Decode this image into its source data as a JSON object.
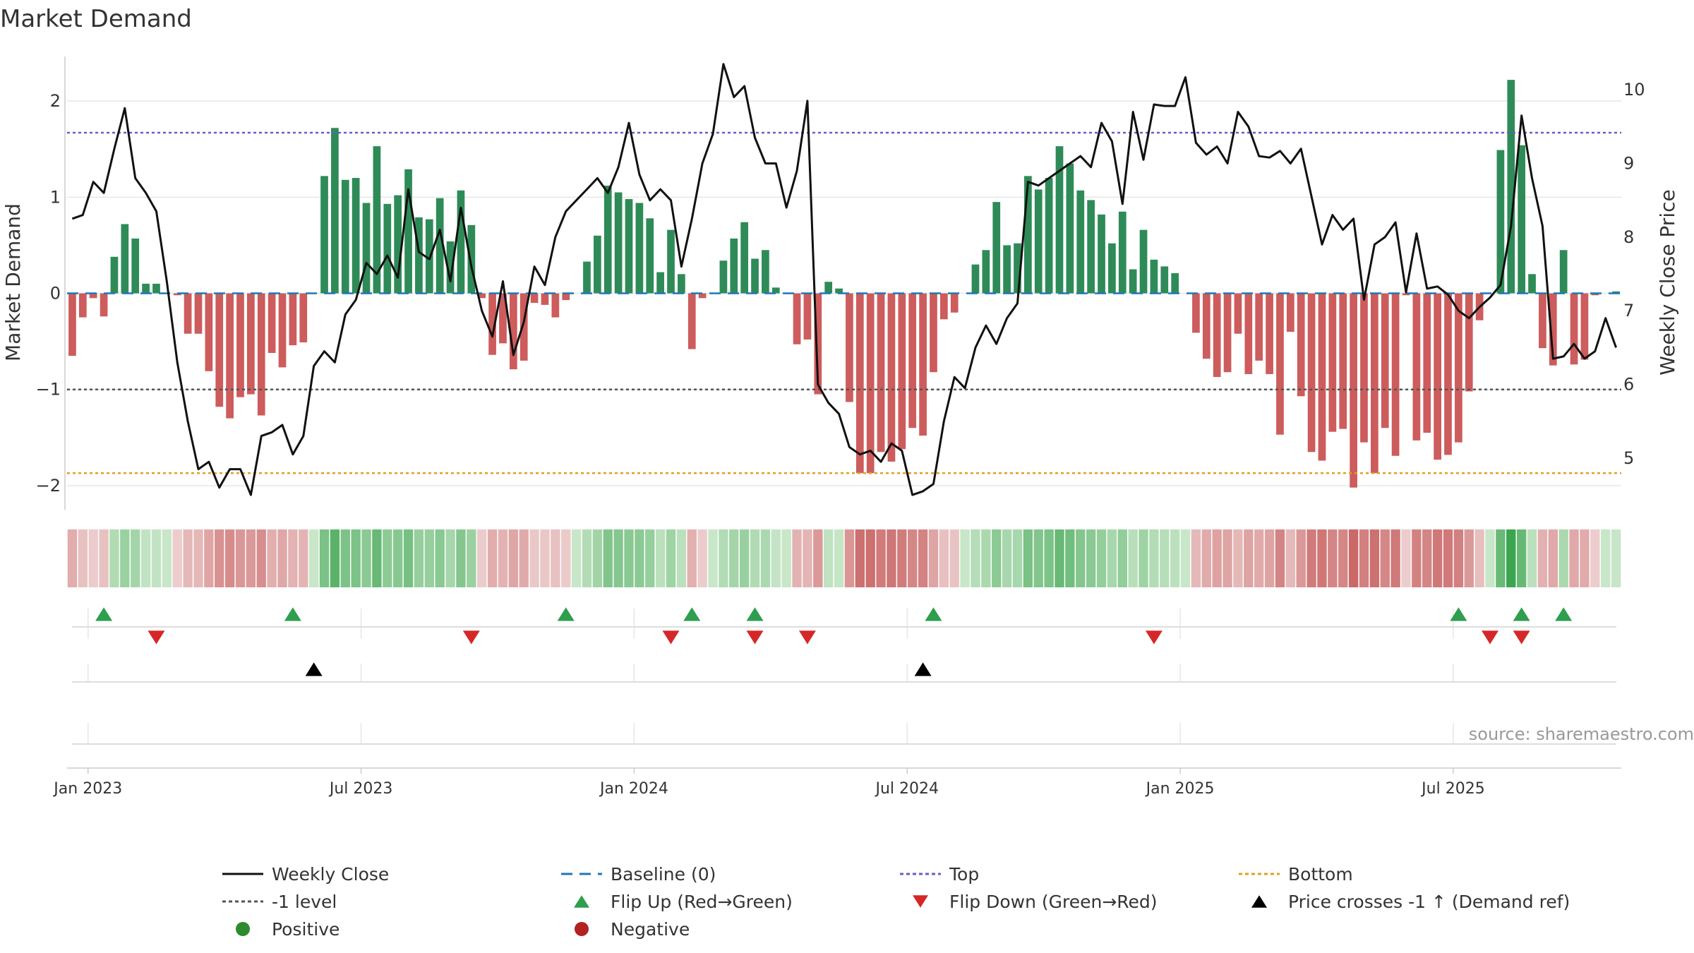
{
  "chart_data": {
    "type": "bar",
    "title": "Market Demand",
    "ylabel": "Market Demand",
    "y2label": "Weekly Close Price",
    "ylim": [
      -2.25,
      2.5
    ],
    "y2lim": [
      4.3,
      10.5
    ],
    "yticks": [
      {
        "v": 2,
        "t": "2"
      },
      {
        "v": 1,
        "t": "1"
      },
      {
        "v": 0,
        "t": "0"
      },
      {
        "v": -1,
        "t": "−1"
      },
      {
        "v": -2,
        "t": "−2"
      }
    ],
    "y2ticks": [
      5,
      6,
      7,
      8,
      9,
      10
    ],
    "xticks": [
      {
        "w": 1.5,
        "label": "Jan 2023"
      },
      {
        "w": 27.5,
        "label": "Jul 2023"
      },
      {
        "w": 53.5,
        "label": "Jan 2024"
      },
      {
        "w": 79.5,
        "label": "Jul 2024"
      },
      {
        "w": 105.5,
        "label": "Jan 2025"
      },
      {
        "w": 131.5,
        "label": "Jul 2025"
      }
    ],
    "levels": {
      "top": 1.67,
      "minus_one": -1,
      "bottom": -1.87,
      "baseline": 0
    },
    "source": "source: sharemaestro.com",
    "demand": [
      -0.65,
      -0.25,
      -0.05,
      -0.24,
      0.38,
      0.72,
      0.57,
      0.1,
      0.1,
      0,
      -0.02,
      -0.42,
      -0.42,
      -0.81,
      -1.18,
      -1.3,
      -1.08,
      -1.05,
      -1.27,
      -0.62,
      -0.77,
      -0.54,
      -0.51,
      0,
      1.22,
      1.72,
      1.18,
      1.2,
      0.94,
      1.53,
      0.93,
      1.02,
      1.29,
      0.79,
      0.77,
      0.99,
      0.54,
      1.07,
      0.71,
      -0.05,
      -0.64,
      -0.52,
      -0.79,
      -0.7,
      -0.1,
      -0.12,
      -0.25,
      -0.07,
      0,
      0.33,
      0.6,
      1.12,
      1.05,
      0.98,
      0.94,
      0.78,
      0.22,
      0.66,
      0.2,
      -0.58,
      -0.05,
      0,
      0.34,
      0.57,
      0.74,
      0.36,
      0.45,
      0.06,
      0,
      -0.53,
      -0.48,
      -1.05,
      0.12,
      0.05,
      -1.13,
      -1.87,
      -1.87,
      -1.65,
      -1.75,
      -1.62,
      -1.4,
      -1.48,
      -0.82,
      -0.27,
      -0.2,
      0,
      0.3,
      0.45,
      0.95,
      0.5,
      0.52,
      1.22,
      1.08,
      1.2,
      1.53,
      1.35,
      1.07,
      0.97,
      0.82,
      0.52,
      0.85,
      0.25,
      0.66,
      0.35,
      0.28,
      0.21,
      0,
      -0.41,
      -0.68,
      -0.87,
      -0.82,
      -0.42,
      -0.84,
      -0.7,
      -0.84,
      -1.47,
      -0.4,
      -1.07,
      -1.65,
      -1.74,
      -1.44,
      -1.41,
      -2.02,
      -1.55,
      -1.87,
      -1.4,
      -1.69,
      -0.02,
      -1.53,
      -1.45,
      -1.73,
      -1.68,
      -1.55,
      -1.02,
      -0.28,
      0,
      1.49,
      2.22,
      1.54,
      0.2,
      -0.57,
      -0.75,
      0.45,
      -0.74,
      -0.69,
      -0.02,
      0,
      0.02
    ],
    "price": [
      8.25,
      8.3,
      8.75,
      8.6,
      9.2,
      9.75,
      8.8,
      8.6,
      8.35,
      7.4,
      6.3,
      5.5,
      4.85,
      4.95,
      4.6,
      4.85,
      4.85,
      4.5,
      5.3,
      5.35,
      5.45,
      5.05,
      5.3,
      6.25,
      6.45,
      6.3,
      6.95,
      7.15,
      7.65,
      7.5,
      7.75,
      7.45,
      8.65,
      7.8,
      7.7,
      8.1,
      7.4,
      8.4,
      7.6,
      7.0,
      6.65,
      7.4,
      6.4,
      6.85,
      7.6,
      7.35,
      8.0,
      8.35,
      8.5,
      8.65,
      8.8,
      8.6,
      8.95,
      9.55,
      8.85,
      8.5,
      8.65,
      8.5,
      7.6,
      8.25,
      9.0,
      9.4,
      10.35,
      9.9,
      10.05,
      9.35,
      9.0,
      9.0,
      8.4,
      8.9,
      9.85,
      6.0,
      5.75,
      5.6,
      5.15,
      5.05,
      5.1,
      4.95,
      5.2,
      5.1,
      4.5,
      4.55,
      4.65,
      5.5,
      6.1,
      5.95,
      6.5,
      6.8,
      6.55,
      6.9,
      7.1,
      8.75,
      8.7,
      8.8,
      8.9,
      9.0,
      9.1,
      8.95,
      9.55,
      9.3,
      8.45,
      9.7,
      9.05,
      9.8,
      9.78,
      9.78,
      10.17,
      9.28,
      9.12,
      9.23,
      9.0,
      9.7,
      9.5,
      9.1,
      9.08,
      9.17,
      9.0,
      9.2,
      8.55,
      7.9,
      8.3,
      8.1,
      8.25,
      7.15,
      7.9,
      8.0,
      8.2,
      7.25,
      8.05,
      7.3,
      7.33,
      7.22,
      7.0,
      6.9,
      7.05,
      7.18,
      7.35,
      8.15,
      9.65,
      8.8,
      8.15,
      6.35,
      6.38,
      6.55,
      6.35,
      6.45,
      6.9,
      6.5
    ],
    "flip_up": [
      3,
      21,
      47,
      59,
      65,
      82,
      132,
      138,
      142
    ],
    "flip_down": [
      8,
      38,
      57,
      65,
      70,
      103,
      135,
      138
    ],
    "price_cross": [
      23,
      81
    ],
    "legend": [
      {
        "key": "weekly-close",
        "label": "Weekly Close",
        "swatch": "line-solid",
        "color": "#111111"
      },
      {
        "key": "baseline",
        "label": "Baseline (0)",
        "swatch": "line-dash",
        "color": "#1f77b4"
      },
      {
        "key": "top",
        "label": "Top",
        "swatch": "line-dot",
        "color": "#6a5acd"
      },
      {
        "key": "bottom",
        "label": "Bottom",
        "swatch": "line-dot",
        "color": "#e0a020"
      },
      {
        "key": "minus-one",
        "label": "-1 level",
        "swatch": "line-dot",
        "color": "#555555"
      },
      {
        "key": "flip-up",
        "label": "Flip Up (Red→Green)",
        "swatch": "tri-up",
        "color": "#2e9e4f"
      },
      {
        "key": "flip-down",
        "label": "Flip Down (Green→Red)",
        "swatch": "tri-down",
        "color": "#d62728"
      },
      {
        "key": "price-cross",
        "label": "Price crosses -1 ↑ (Demand ref)",
        "swatch": "tri-up",
        "color": "#000000"
      },
      {
        "key": "positive",
        "label": "Positive",
        "swatch": "circle",
        "color": "#2e8b2e"
      },
      {
        "key": "negative",
        "label": "Negative",
        "swatch": "circle",
        "color": "#b22222"
      }
    ],
    "colors": {
      "pos_bar": "#2e8b57",
      "neg_bar": "#cd5c5c",
      "grid": "#e6e6e6",
      "axis": "#cccccc",
      "text": "#333333"
    }
  }
}
